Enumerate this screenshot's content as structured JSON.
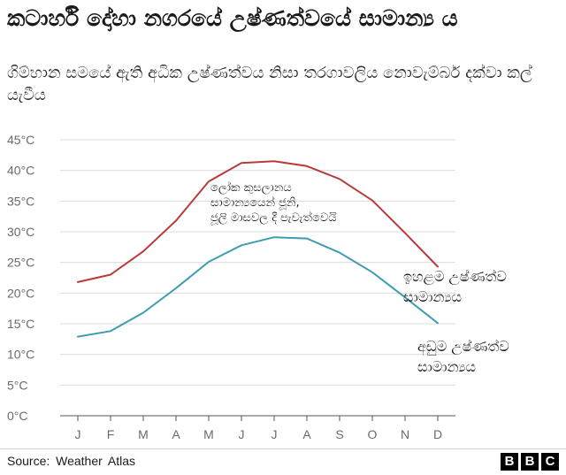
{
  "title": "කටාර්හි දෝහා නගරයේ උෂ්ණත්වයේ සාමාන්‍ය ය",
  "subtitle": "ගිම්හාන සමයේ ඇති අධික උෂ්ණත්වය නිසා තරගාවලිය නොවැම්බර් දක්වා කල් යැවීය",
  "source": "Source: Weather Atlas",
  "logo": [
    "B",
    "B",
    "C"
  ],
  "colors": {
    "high": "#b83a3a",
    "low": "#3f9db0",
    "grid": "#dcdcdc",
    "axis": "#555555"
  },
  "chart_data": {
    "type": "line",
    "title": "කටාර්හි දෝහා නගරයේ උෂ්ණත්වයේ සාමාන්‍ය ය",
    "xlabel": "",
    "ylabel": "",
    "categories": [
      "J",
      "F",
      "M",
      "A",
      "M",
      "J",
      "J",
      "A",
      "S",
      "O",
      "N",
      "D"
    ],
    "ylim": [
      0,
      45
    ],
    "yticks": [
      0,
      5,
      10,
      15,
      20,
      25,
      30,
      35,
      40,
      45
    ],
    "ytick_labels": [
      "0°C",
      "5°C",
      "10°C",
      "15°C",
      "20°C",
      "25°C",
      "30°C",
      "35°C",
      "40°C",
      "45°C"
    ],
    "grid": true,
    "series": [
      {
        "name": "ඉහළම උෂ්ණත්ව සාමාන්‍යය",
        "label_lines": [
          "ඉහළම උෂ්ණත්ව",
          "සාමාන්‍යය"
        ],
        "values": [
          21.8,
          23.0,
          26.8,
          31.8,
          38.2,
          41.2,
          41.5,
          40.7,
          38.6,
          35.1,
          29.8,
          24.3
        ]
      },
      {
        "name": "අඩුම උෂ්ණත්ව සාමාන්‍යය",
        "label_lines": [
          "අඩුම උෂ්ණත්ව",
          "සාමාන්‍යය"
        ],
        "values": [
          12.9,
          13.8,
          16.8,
          20.8,
          25.1,
          27.8,
          29.1,
          28.9,
          26.6,
          23.4,
          19.3,
          15.1
        ]
      }
    ],
    "annotation": {
      "lines": [
        "ලෝක කුසලානය",
        "සාමාන්‍යයෙන් ජූනි,",
        "ජූලි මාසවල දී පැවැත්වෙයි"
      ]
    }
  }
}
